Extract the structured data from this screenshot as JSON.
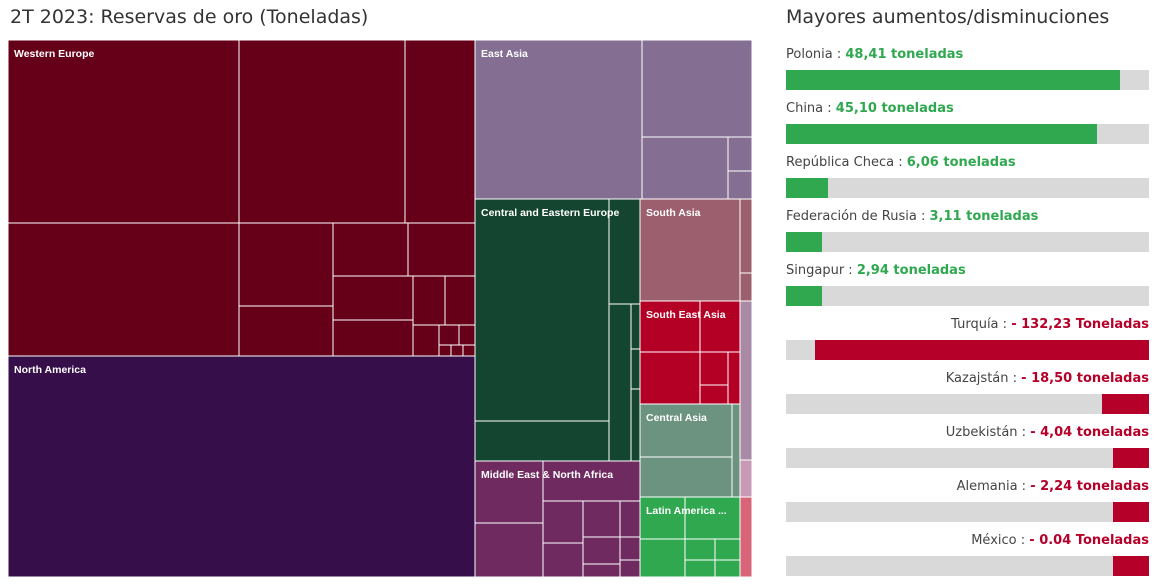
{
  "treemap_title": "2T 2023: Reservas de oro (Toneladas)",
  "side_title": "Mayores aumentos/disminuciones",
  "colors": {
    "positive": "#2fa84f",
    "negative": "#b5002a",
    "track": "#d9d9d9"
  },
  "chart_data": [
    {
      "type": "treemap",
      "title": "2T 2023: Reservas de oro (Toneladas)",
      "groups": [
        {
          "name": "Western Europe",
          "color": "#660019"
        },
        {
          "name": "North America",
          "color": "#360f4a"
        },
        {
          "name": "East Asia",
          "color": "#846f93"
        },
        {
          "name": "Central and Eastern Europe",
          "color": "#144530"
        },
        {
          "name": "South Asia",
          "color": "#9c5f6e"
        },
        {
          "name": "South East Asia",
          "color": "#b50025"
        },
        {
          "name": "Central Asia",
          "color": "#6b9380"
        },
        {
          "name": "Middle East & North Africa",
          "color": "#6f2a60"
        },
        {
          "name": "Latin America ...",
          "color": "#2fa84f"
        }
      ]
    },
    {
      "type": "bar",
      "title": "Mayores aumentos/disminuciones",
      "unit": "toneladas",
      "items": [
        {
          "country": "Polonia",
          "sep": " : ",
          "value_text": "48,41 toneladas",
          "value": 48.41,
          "sign": "positive"
        },
        {
          "country": "China",
          "sep": " : ",
          "value_text": "45,10 toneladas",
          "value": 45.1,
          "sign": "positive"
        },
        {
          "country": "República Checa",
          "sep": " : ",
          "value_text": "6,06 toneladas",
          "value": 6.06,
          "sign": "positive"
        },
        {
          "country": "Federación de Rusia",
          "sep": " : ",
          "value_text": "3,11 toneladas",
          "value": 3.11,
          "sign": "positive"
        },
        {
          "country": "Singapur",
          "sep": " : ",
          "value_text": "2,94 toneladas",
          "value": 2.94,
          "sign": "positive"
        },
        {
          "country": "Turquía",
          "sep": " : ",
          "value_text": "- 132,23 Toneladas",
          "value": -132.23,
          "sign": "negative"
        },
        {
          "country": "Kazajstán",
          "sep": " : ",
          "value_text": "- 18,50 toneladas",
          "value": -18.5,
          "sign": "negative"
        },
        {
          "country": "Uzbekistán",
          "sep": " : ",
          "value_text": "- 4,04 toneladas",
          "value": -4.04,
          "sign": "negative"
        },
        {
          "country": "Alemania",
          "sep": " : ",
          "value_text": "- 2,24 toneladas",
          "value": -2.24,
          "sign": "negative"
        },
        {
          "country": "México",
          "sep": " : ",
          "value_text": "- 0.04 Toneladas",
          "value": -0.04,
          "sign": "negative"
        }
      ]
    }
  ]
}
